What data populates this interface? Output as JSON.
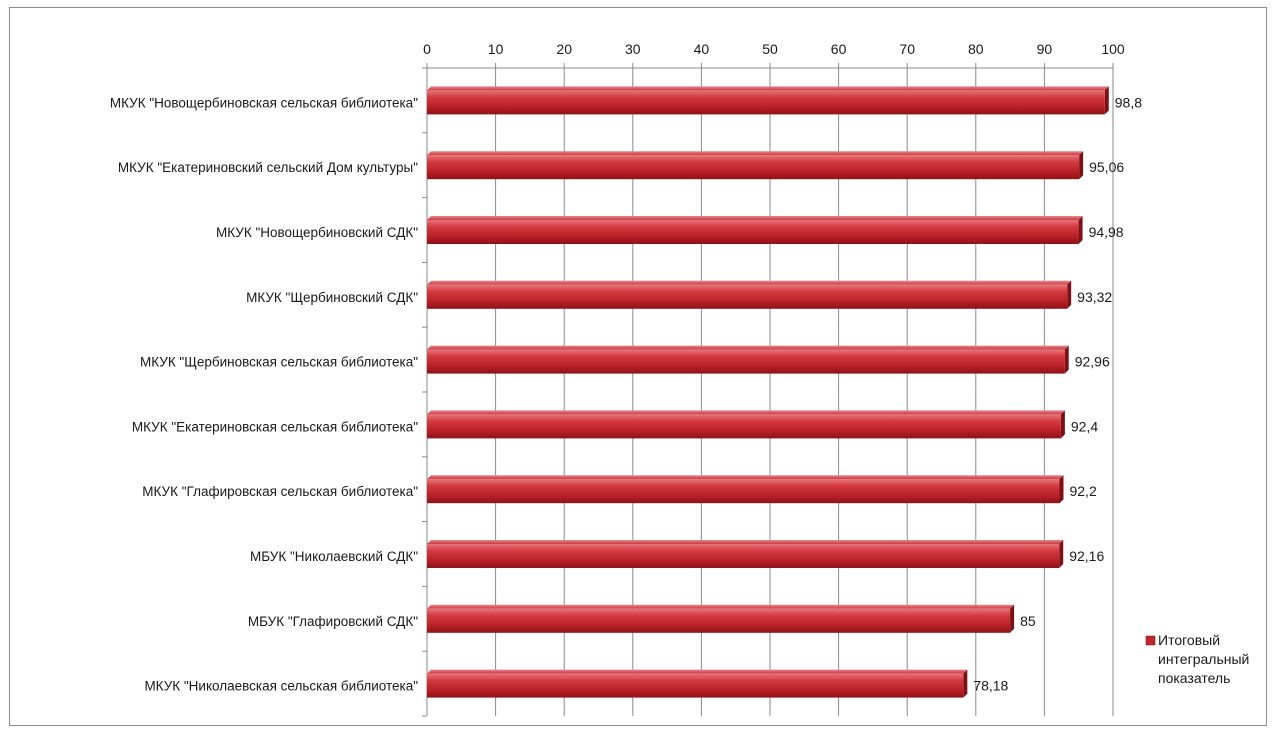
{
  "chart_data": {
    "type": "bar",
    "orientation": "horizontal",
    "categories": [
      "МКУК \"Новощербиновская сельская библиотека\"",
      "МКУК \"Екатериновский сельский Дом культуры\"",
      "МКУК \"Новощербиновский СДК\"",
      "МКУК \"Щербиновский СДК\"",
      "МКУК \"Щербиновская сельская библиотека\"",
      "МКУК \"Екатериновская сельская библиотека\"",
      "МКУК \"Глафировская сельская библиотека\"",
      "МБУК \"Николаевский СДК\"",
      "МБУК \"Глафировский СДК\"",
      "МКУК \"Николаевская сельская библиотека\""
    ],
    "series": [
      {
        "name": "Итоговый интегральный показатель",
        "color": "#c0262b",
        "values": [
          98.8,
          95.06,
          94.98,
          93.32,
          92.96,
          92.4,
          92.2,
          92.16,
          85,
          78.18
        ],
        "labels": [
          "98,8",
          "95,06",
          "94,98",
          "93,32",
          "92,96",
          "92,4",
          "92,2",
          "92,16",
          "85",
          "78,18"
        ]
      }
    ],
    "xlim": [
      0,
      100
    ],
    "x_ticks": [
      "0",
      "10",
      "20",
      "30",
      "40",
      "50",
      "60",
      "70",
      "80",
      "90",
      "100"
    ],
    "x_axis_position": "top",
    "grid": true,
    "legend_position": "right-bottom",
    "legend_lines": [
      "Итоговый",
      "интегральный",
      "показатель"
    ]
  }
}
